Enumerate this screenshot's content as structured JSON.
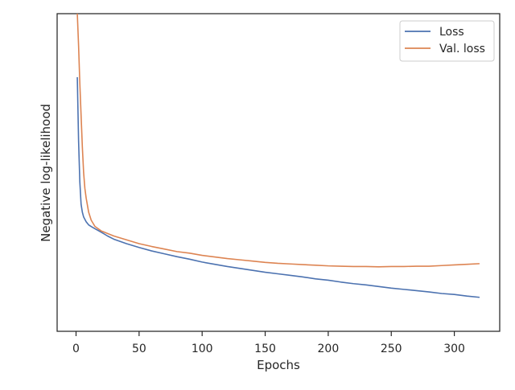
{
  "chart_data": {
    "type": "line",
    "title": "",
    "xlabel": "Epochs",
    "ylabel": "Negative log-likelihood",
    "xlim": [
      -15,
      336
    ],
    "ylim": [
      0,
      100
    ],
    "xticks": [
      0,
      50,
      100,
      150,
      200,
      250,
      300
    ],
    "yticks_shown": false,
    "grid": false,
    "legend_position": "top-right",
    "series": [
      {
        "name": "Loss",
        "color": "#4c72b0",
        "x": [
          1,
          2,
          3,
          4,
          5,
          6,
          8,
          10,
          12,
          15,
          20,
          25,
          30,
          40,
          50,
          60,
          70,
          80,
          90,
          100,
          110,
          120,
          130,
          140,
          150,
          160,
          170,
          180,
          190,
          200,
          210,
          220,
          230,
          240,
          250,
          260,
          270,
          280,
          290,
          300,
          310,
          320
        ],
        "y": [
          80.0,
          60.0,
          47.0,
          40.0,
          37.5,
          36.0,
          34.5,
          33.5,
          33.0,
          32.3,
          31.2,
          30.0,
          29.0,
          27.6,
          26.4,
          25.3,
          24.4,
          23.5,
          22.7,
          21.8,
          21.1,
          20.4,
          19.8,
          19.2,
          18.6,
          18.1,
          17.6,
          17.1,
          16.5,
          16.1,
          15.5,
          15.0,
          14.6,
          14.1,
          13.6,
          13.2,
          12.8,
          12.4,
          11.9,
          11.6,
          11.1,
          10.7
        ]
      },
      {
        "name": "Val. loss",
        "color": "#dd8452",
        "x": [
          1,
          2,
          3,
          4,
          5,
          6,
          7,
          8,
          10,
          12,
          15,
          20,
          25,
          30,
          40,
          50,
          60,
          70,
          80,
          90,
          100,
          110,
          120,
          130,
          140,
          150,
          160,
          170,
          180,
          190,
          200,
          210,
          220,
          230,
          240,
          250,
          260,
          270,
          280,
          290,
          300,
          310,
          320
        ],
        "y": [
          100.0,
          90.0,
          78.0,
          68.0,
          58.0,
          50.0,
          45.0,
          42.0,
          37.5,
          35.0,
          33.0,
          31.6,
          30.8,
          30.0,
          28.8,
          27.6,
          26.7,
          25.9,
          25.1,
          24.6,
          23.9,
          23.4,
          22.9,
          22.5,
          22.1,
          21.7,
          21.4,
          21.2,
          21.0,
          20.8,
          20.6,
          20.5,
          20.4,
          20.4,
          20.3,
          20.4,
          20.4,
          20.5,
          20.5,
          20.7,
          20.9,
          21.1,
          21.3
        ]
      }
    ]
  }
}
